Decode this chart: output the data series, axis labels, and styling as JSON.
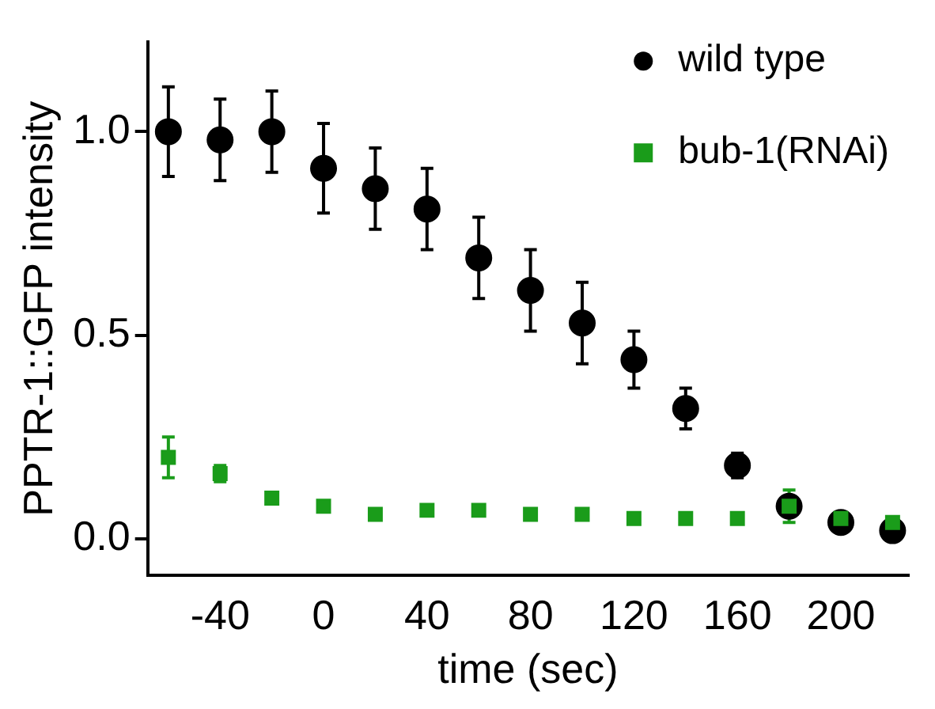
{
  "chart_data": {
    "type": "scatter",
    "xlabel": "time (sec)",
    "ylabel": "PPTR-1::GFP intensity",
    "x": [
      -60,
      -40,
      -20,
      0,
      20,
      40,
      60,
      80,
      100,
      120,
      140,
      160,
      180,
      200,
      220
    ],
    "series": [
      {
        "name": "wild type",
        "color": "#000000",
        "marker": "circle",
        "values": [
          1.0,
          0.98,
          1.0,
          0.91,
          0.86,
          0.81,
          0.69,
          0.61,
          0.53,
          0.44,
          0.32,
          0.18,
          0.08,
          0.04,
          0.02
        ],
        "errors": [
          0.11,
          0.1,
          0.1,
          0.11,
          0.1,
          0.1,
          0.1,
          0.1,
          0.1,
          0.07,
          0.05,
          0.03,
          null,
          null,
          null
        ]
      },
      {
        "name": "bub-1(RNAi)",
        "color": "#1a9c1a",
        "marker": "square",
        "values": [
          0.2,
          0.16,
          0.1,
          0.08,
          0.06,
          0.07,
          0.07,
          0.06,
          0.06,
          0.05,
          0.05,
          0.05,
          0.08,
          0.05,
          0.04
        ],
        "errors": [
          0.05,
          0.02,
          null,
          null,
          null,
          null,
          null,
          null,
          null,
          null,
          null,
          null,
          0.04,
          null,
          null
        ]
      }
    ],
    "xlim": [
      -68,
      226
    ],
    "xticks": [
      -40,
      0,
      40,
      80,
      120,
      160,
      200
    ],
    "ylim": [
      -0.09,
      1.22
    ],
    "yticks": [
      {
        "value": 0,
        "label": "0.0"
      },
      {
        "value": 0.5,
        "label": "0.5"
      },
      {
        "value": 1,
        "label": "1.0"
      }
    ],
    "grid": false,
    "legend": "top right"
  }
}
